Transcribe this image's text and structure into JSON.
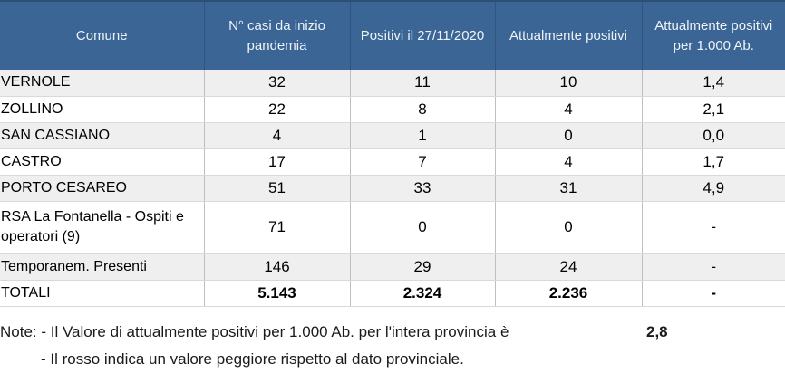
{
  "colors": {
    "header_bg": "#3a6595",
    "header_top_line": "#2d5175",
    "header_text": "#eef3f8",
    "row_alt_bg": "#efefef",
    "highlight_bad_bg": "#fa9f9a",
    "grid_vertical": "#bfbfbf",
    "grid_horizontal": "#d9d9d9"
  },
  "chart_data": {
    "type": "table",
    "columns": [
      "Comune",
      "N° casi da inizio pandemia",
      "Positivi il 27/11/2020",
      "Attualmente positivi",
      "Attualmente positivi per 1.000 Ab."
    ],
    "rows": [
      {
        "comune": "VERNOLE",
        "casi": "32",
        "positivi_giorno": "11",
        "attualmente": "10",
        "per_1000": "1,4",
        "highlight_per_1000": false
      },
      {
        "comune": "ZOLLINO",
        "casi": "22",
        "positivi_giorno": "8",
        "attualmente": "4",
        "per_1000": "2,1",
        "highlight_per_1000": false
      },
      {
        "comune": "SAN CASSIANO",
        "casi": "4",
        "positivi_giorno": "1",
        "attualmente": "0",
        "per_1000": "0,0",
        "highlight_per_1000": false
      },
      {
        "comune": "CASTRO",
        "casi": "17",
        "positivi_giorno": "7",
        "attualmente": "4",
        "per_1000": "1,7",
        "highlight_per_1000": false
      },
      {
        "comune": "PORTO CESAREO",
        "casi": "51",
        "positivi_giorno": "33",
        "attualmente": "31",
        "per_1000": "4,9",
        "highlight_per_1000": true
      },
      {
        "comune": "RSA La Fontanella - Ospiti e operatori (9)",
        "casi": "71",
        "positivi_giorno": "0",
        "attualmente": "0",
        "per_1000": "-",
        "highlight_per_1000": false
      },
      {
        "comune": "Temporanem. Presenti",
        "casi": "146",
        "positivi_giorno": "29",
        "attualmente": "24",
        "per_1000": "-",
        "highlight_per_1000": false
      },
      {
        "comune": "TOTALI",
        "casi": "5.143",
        "positivi_giorno": "2.324",
        "attualmente": "2.236",
        "per_1000": "-",
        "highlight_per_1000": false
      }
    ]
  },
  "notes": {
    "line1": "Note: - Il Valore di attualmente positivi per 1.000 Ab. per l'intera provincia è",
    "province_value": "2,8",
    "line2": "- Il rosso indica un valore peggiore rispetto al dato provinciale."
  }
}
